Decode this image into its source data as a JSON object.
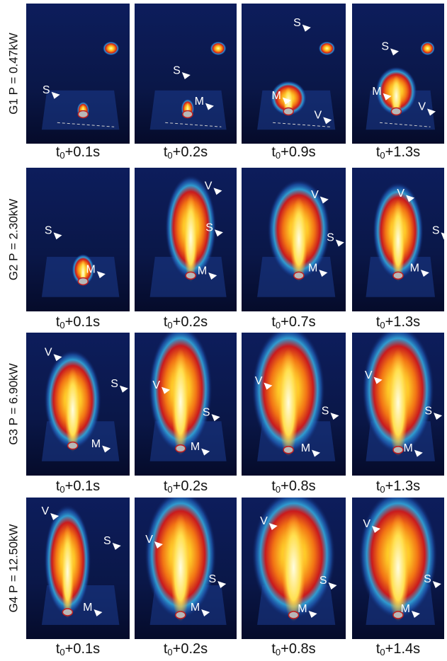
{
  "rows": [
    {
      "label": "G1 P = 0.47kW",
      "panels": [
        {
          "time": {
            "t": "t",
            "sub": "0",
            "offset": "+0.1s"
          },
          "markers": [
            "S"
          ]
        },
        {
          "time": {
            "t": "t",
            "sub": "0",
            "offset": "+0.2s"
          },
          "markers": [
            "S",
            "M"
          ]
        },
        {
          "time": {
            "t": "t",
            "sub": "0",
            "offset": "+0.9s"
          },
          "markers": [
            "S",
            "M",
            "V"
          ]
        },
        {
          "time": {
            "t": "t",
            "sub": "0",
            "offset": "+1.3s"
          },
          "markers": [
            "S",
            "M",
            "V"
          ]
        }
      ]
    },
    {
      "label": "G2 P = 2.30kW",
      "panels": [
        {
          "time": {
            "t": "t",
            "sub": "0",
            "offset": "+0.1s"
          },
          "markers": [
            "S",
            "M"
          ]
        },
        {
          "time": {
            "t": "t",
            "sub": "0",
            "offset": "+0.2s"
          },
          "markers": [
            "V",
            "S",
            "M"
          ]
        },
        {
          "time": {
            "t": "t",
            "sub": "0",
            "offset": "+0.7s"
          },
          "markers": [
            "V",
            "S",
            "M"
          ]
        },
        {
          "time": {
            "t": "t",
            "sub": "0",
            "offset": "+1.3s"
          },
          "markers": [
            "V",
            "S",
            "M"
          ]
        }
      ]
    },
    {
      "label": "G3 P = 6.90kW",
      "panels": [
        {
          "time": {
            "t": "t",
            "sub": "0",
            "offset": "+0.1s"
          },
          "markers": [
            "V",
            "S",
            "M"
          ]
        },
        {
          "time": {
            "t": "t",
            "sub": "0",
            "offset": "+0.2s"
          },
          "markers": [
            "V",
            "S",
            "M"
          ]
        },
        {
          "time": {
            "t": "t",
            "sub": "0",
            "offset": "+0.8s"
          },
          "markers": [
            "V",
            "S",
            "M"
          ]
        },
        {
          "time": {
            "t": "t",
            "sub": "0",
            "offset": "+1.3s"
          },
          "markers": [
            "V",
            "S",
            "M"
          ]
        }
      ]
    },
    {
      "label": "G4 P = 12.50kW",
      "panels": [
        {
          "time": {
            "t": "t",
            "sub": "0",
            "offset": "+0.1s"
          },
          "markers": [
            "V",
            "S",
            "M"
          ]
        },
        {
          "time": {
            "t": "t",
            "sub": "0",
            "offset": "+0.2s"
          },
          "markers": [
            "V",
            "S",
            "M"
          ]
        },
        {
          "time": {
            "t": "t",
            "sub": "0",
            "offset": "+0.8s"
          },
          "markers": [
            "V",
            "S",
            "M"
          ]
        },
        {
          "time": {
            "t": "t",
            "sub": "0",
            "offset": "+1.4s"
          },
          "markers": [
            "V",
            "S",
            "M"
          ]
        }
      ]
    }
  ]
}
